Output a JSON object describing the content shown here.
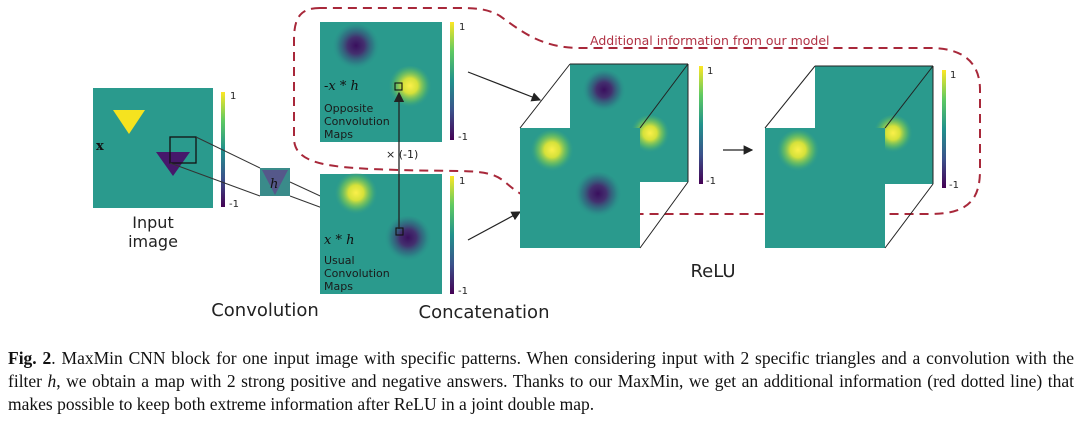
{
  "figure": {
    "input_label_line1": "Input",
    "input_label_line2": "image",
    "input_scale_max": "1",
    "input_scale_min": "-1",
    "x_symbol": "x",
    "filter_symbol": "h",
    "convolution_label": "Convolution",
    "concatenation_label": "Concatenation",
    "relu_label": "ReLU",
    "opposite_expr": "-x * h",
    "opposite_line1": "Opposite",
    "opposite_line2": "Convolution",
    "opposite_line3": "Maps",
    "usual_expr": "x * h",
    "usual_line1": "Usual",
    "usual_line2": "Convolution",
    "usual_line3": "Maps",
    "times_minus_one": "× (-1)",
    "map_scale_max": "1",
    "map_scale_min": "-1",
    "additional_info": "Additional information from our model"
  },
  "caption": {
    "fig_label": "Fig. 2",
    "text_part1": ". MaxMin CNN block for one input image with specific patterns. When considering input with 2 specific triangles and a convolution with the filter ",
    "filter_italic": "h",
    "text_part2": ", we obtain a map with 2 strong positive and negative answers. Thanks to our MaxMin, we get an additional information (red dotted line) that makes possible to keep both extreme information after ReLU in a joint double map."
  },
  "colors": {
    "teal_background": "#2a9a8d",
    "yellow": "#f5e31f",
    "purple": "#46186b",
    "dashed_red": "#a8283a",
    "annotation_red": "#b03244"
  }
}
